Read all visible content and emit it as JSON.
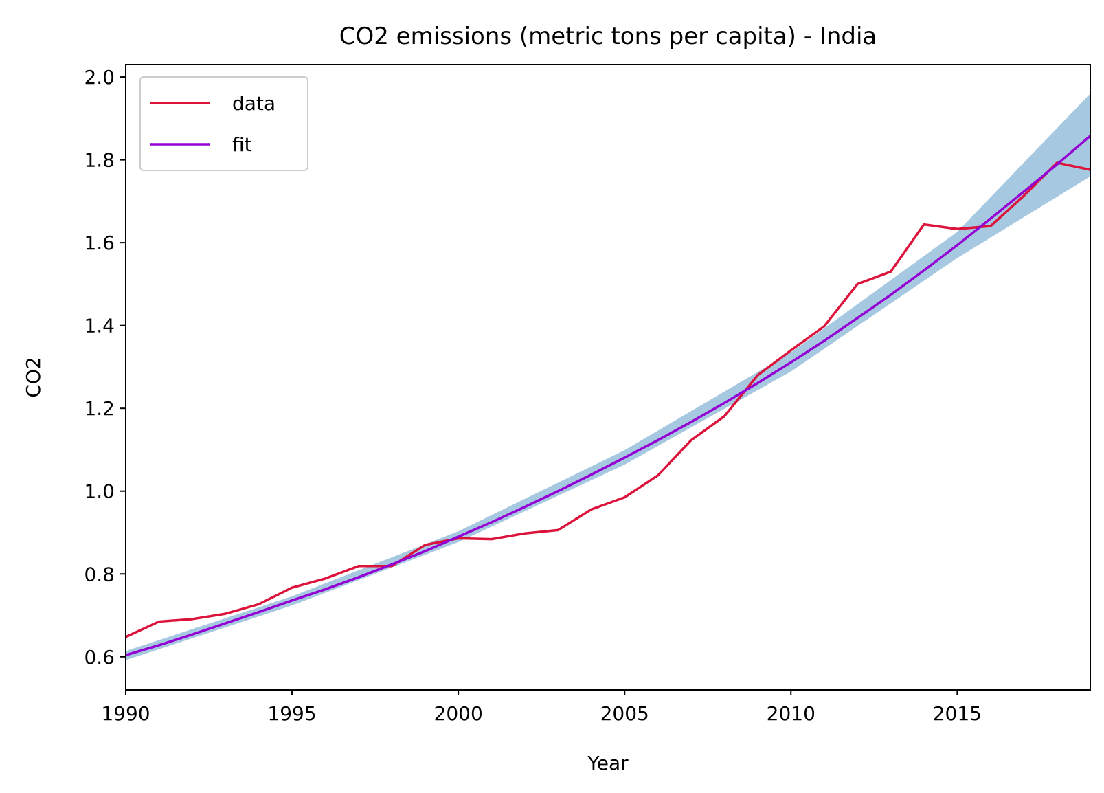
{
  "chart_data": {
    "type": "line",
    "title": "CO2 emissions (metric tons per capita) - India",
    "xlabel": "Year",
    "ylabel": "CO2",
    "xlim": [
      1990,
      2019
    ],
    "ylim": [
      0.52,
      2.03
    ],
    "x_ticks": [
      1990,
      1995,
      2000,
      2005,
      2010,
      2015
    ],
    "y_ticks": [
      0.6,
      0.8,
      1.0,
      1.2,
      1.4,
      1.6,
      1.8,
      2.0
    ],
    "y_tick_labels": [
      "0.6",
      "0.8",
      "1.0",
      "1.2",
      "1.4",
      "1.6",
      "1.8",
      "2.0"
    ],
    "grid": false,
    "legend": {
      "placement": "top-left"
    },
    "series": [
      {
        "name": "data",
        "color": "#dc143c",
        "x": [
          1990,
          1991,
          1992,
          1993,
          1994,
          1995,
          1996,
          1997,
          1998,
          1999,
          2000,
          2001,
          2002,
          2003,
          2004,
          2005,
          2006,
          2007,
          2008,
          2009,
          2010,
          2011,
          2012,
          2013,
          2014,
          2015,
          2016,
          2017,
          2018,
          2019
        ],
        "y": [
          0.648,
          0.685,
          0.691,
          0.704,
          0.727,
          0.767,
          0.789,
          0.819,
          0.819,
          0.87,
          0.886,
          0.884,
          0.898,
          0.906,
          0.956,
          0.985,
          1.038,
          1.123,
          1.181,
          1.28,
          1.34,
          1.398,
          1.5,
          1.53,
          1.644,
          1.633,
          1.64,
          1.713,
          1.793,
          1.776
        ]
      },
      {
        "name": "fit",
        "color": "#9400d3",
        "x": [
          1990,
          1991,
          1992,
          1993,
          1994,
          1995,
          1996,
          1997,
          1998,
          1999,
          2000,
          2001,
          2002,
          2003,
          2004,
          2005,
          2006,
          2007,
          2008,
          2009,
          2010,
          2011,
          2012,
          2013,
          2014,
          2015,
          2016,
          2017,
          2018,
          2019
        ],
        "y": [
          0.604,
          0.628,
          0.654,
          0.681,
          0.708,
          0.736,
          0.763,
          0.792,
          0.823,
          0.855,
          0.89,
          0.925,
          0.962,
          1.0,
          1.04,
          1.081,
          1.123,
          1.167,
          1.213,
          1.261,
          1.311,
          1.363,
          1.418,
          1.474,
          1.533,
          1.594,
          1.658,
          1.723,
          1.789,
          1.858
        ]
      }
    ],
    "band": {
      "color": "#a6c8e0",
      "x": [
        1990,
        1995,
        2000,
        2005,
        2010,
        2015,
        2019
      ],
      "y_lower": [
        0.592,
        0.724,
        0.877,
        1.064,
        1.289,
        1.563,
        1.76
      ],
      "y_upper": [
        0.614,
        0.746,
        0.903,
        1.099,
        1.335,
        1.626,
        1.96
      ]
    }
  }
}
